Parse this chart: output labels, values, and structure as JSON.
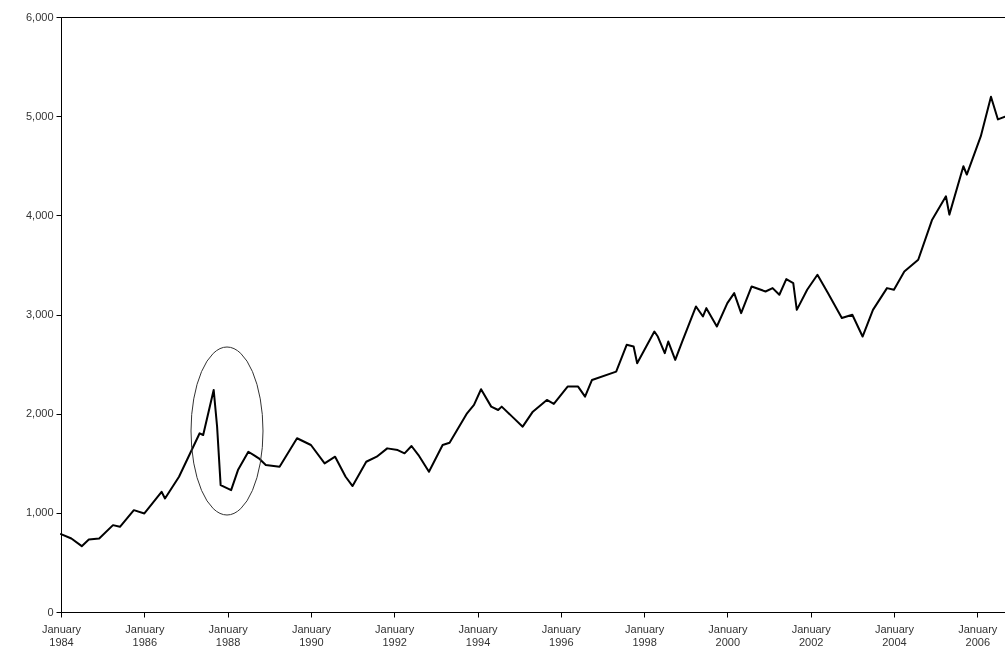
{
  "chart_data": {
    "type": "line",
    "x": [
      "1984-01",
      "1984-04",
      "1984-07",
      "1984-09",
      "1984-12",
      "1985-04",
      "1985-06",
      "1985-10",
      "1986-01",
      "1986-06",
      "1986-07",
      "1986-11",
      "1987-05",
      "1987-06",
      "1987-09",
      "1987-10",
      "1987-11",
      "1988-02",
      "1988-04",
      "1988-07",
      "1988-10",
      "1988-12",
      "1989-04",
      "1989-09",
      "1990-01",
      "1990-05",
      "1990-08",
      "1990-11",
      "1991-01",
      "1991-05",
      "1991-08",
      "1991-11",
      "1992-02",
      "1992-04",
      "1992-06",
      "1992-08",
      "1992-11",
      "1993-03",
      "1993-05",
      "1993-10",
      "1993-12",
      "1994-02",
      "1994-05",
      "1994-07",
      "1994-08",
      "1994-11",
      "1995-02",
      "1995-05",
      "1995-09",
      "1995-11",
      "1996-03",
      "1996-06",
      "1996-08",
      "1996-10",
      "1997-05",
      "1997-08",
      "1997-10",
      "1997-11",
      "1998-04",
      "1998-05",
      "1998-07",
      "1998-08",
      "1998-10",
      "1998-12",
      "1999-04",
      "1999-06",
      "1999-07",
      "1999-10",
      "2000-01",
      "2000-03",
      "2000-05",
      "2000-08",
      "2000-12",
      "2001-02",
      "2001-04",
      "2001-06",
      "2001-08",
      "2001-09",
      "2001-12",
      "2002-03",
      "2002-06",
      "2002-10",
      "2003-01",
      "2003-04",
      "2003-07",
      "2003-11",
      "2004-01",
      "2004-04",
      "2004-08",
      "2004-12",
      "2005-04",
      "2005-05",
      "2005-09",
      "2005-10",
      "2006-02",
      "2006-05",
      "2006-07",
      "2006-09"
    ],
    "series": [
      {
        "color": "#000000",
        "values": [
          785,
          741,
          664,
          731,
          741,
          876,
          859,
          1027,
          994,
          1212,
          1145,
          1364,
          1802,
          1785,
          2239,
          1869,
          1280,
          1229,
          1431,
          1616,
          1550,
          1482,
          1465,
          1752,
          1684,
          1499,
          1566,
          1364,
          1270,
          1515,
          1566,
          1650,
          1633,
          1600,
          1674,
          1583,
          1414,
          1684,
          1707,
          2004,
          2088,
          2246,
          2071,
          2037,
          2071,
          1970,
          1869,
          2020,
          2138,
          2098,
          2273,
          2273,
          2172,
          2340,
          2424,
          2694,
          2677,
          2509,
          2828,
          2778,
          2610,
          2727,
          2542,
          2727,
          3081,
          2980,
          3064,
          2879,
          3115,
          3216,
          3014,
          3283,
          3232,
          3266,
          3199,
          3357,
          3317,
          3047,
          3249,
          3401,
          3216,
          2964,
          2997,
          2778,
          3047,
          3266,
          3249,
          3434,
          3552,
          3956,
          4192,
          4007,
          4495,
          4411,
          4798,
          5196,
          4967,
          4994
        ]
      }
    ],
    "xlim": [
      "1984-01",
      "2006-09"
    ],
    "xticks": [
      {
        "value": "1984-01",
        "label": "January 1984"
      },
      {
        "value": "1986-01",
        "label": "January 1986"
      },
      {
        "value": "1988-01",
        "label": "January 1988"
      },
      {
        "value": "1990-01",
        "label": "January 1990"
      },
      {
        "value": "1992-01",
        "label": "January 1992"
      },
      {
        "value": "1994-01",
        "label": "January 1994"
      },
      {
        "value": "1996-01",
        "label": "January 1996"
      },
      {
        "value": "1998-01",
        "label": "January 1998"
      },
      {
        "value": "2000-01",
        "label": "January 2000"
      },
      {
        "value": "2002-01",
        "label": "January 2002"
      },
      {
        "value": "2004-01",
        "label": "January 2004"
      },
      {
        "value": "2006-01",
        "label": "January 2006"
      }
    ],
    "ylim": [
      0,
      6000
    ],
    "yticks": [
      {
        "value": 0,
        "label": "0"
      },
      {
        "value": 1000,
        "label": "1,000"
      },
      {
        "value": 2000,
        "label": "2,000"
      },
      {
        "value": 3000,
        "label": "3,000"
      },
      {
        "value": 4000,
        "label": "4,000"
      },
      {
        "value": 5000,
        "label": "5,000"
      },
      {
        "value": 6000,
        "label": "6,000"
      }
    ],
    "grid": false
  }
}
